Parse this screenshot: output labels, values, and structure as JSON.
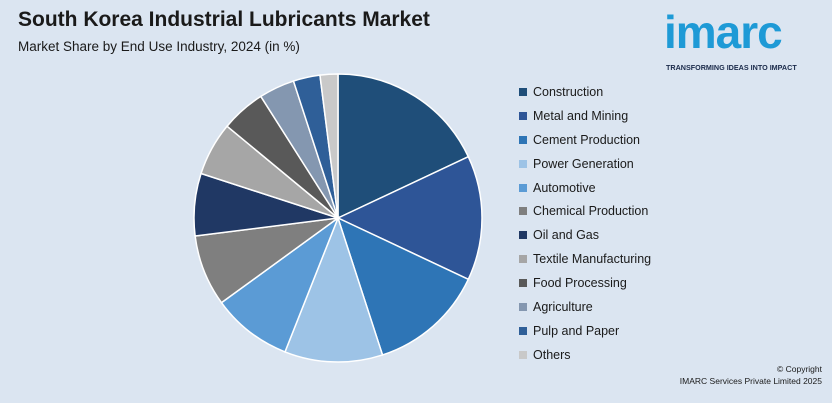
{
  "header": {
    "title": "South Korea Industrial Lubricants Market",
    "subtitle": "Market Share by End Use Industry, 2024 (in %)"
  },
  "logo": {
    "word": "imarc",
    "tagline": "TRANSFORMING IDEAS INTO IMPACT",
    "color": "#1e9ad6"
  },
  "footer": {
    "copyright": "© Copyright",
    "company": "IMARC Services Private Limited 2025"
  },
  "chart_data": {
    "type": "pie",
    "title": "South Korea Industrial Lubricants Market",
    "subtitle": "Market Share by End Use Industry, 2024 (in %)",
    "legend_position": "right",
    "start_angle_deg": 0,
    "direction": "clockwise",
    "categories": [
      "Construction",
      "Metal and Mining",
      "Cement Production",
      "Power Generation",
      "Automotive",
      "Chemical Production",
      "Oil and Gas",
      "Textile Manufacturing",
      "Food Processing",
      "Agriculture",
      "Pulp and Paper",
      "Others"
    ],
    "values": [
      18,
      14,
      13,
      11,
      9,
      8,
      7,
      6,
      5,
      4,
      3,
      2
    ],
    "colors": [
      "#1f4e79",
      "#2e5597",
      "#2e75b6",
      "#9dc3e6",
      "#5b9bd5",
      "#7f7f7f",
      "#203864",
      "#a6a6a6",
      "#595959",
      "#8497b0",
      "#2f5f98",
      "#c9c9c9"
    ]
  }
}
